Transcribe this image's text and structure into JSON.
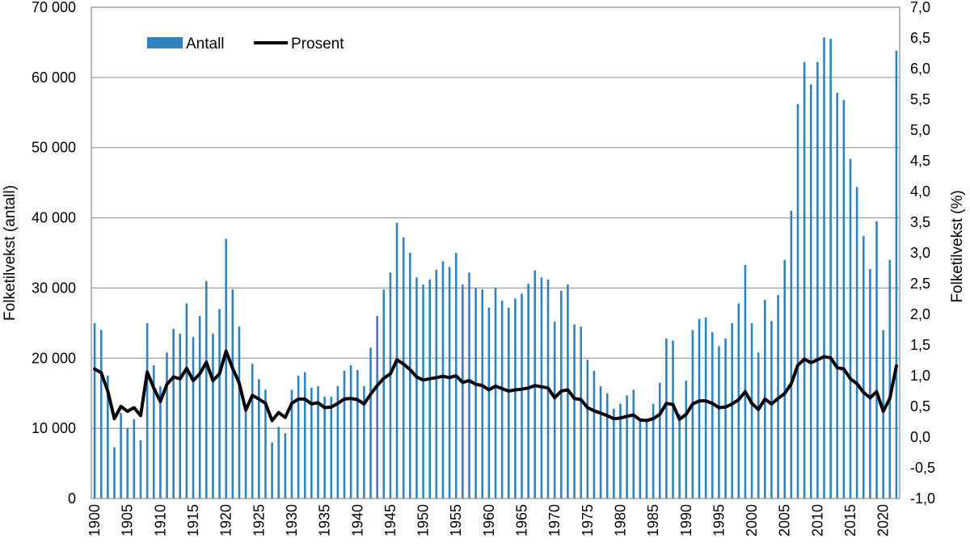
{
  "chart_data": {
    "type": "bar+line",
    "title": "",
    "x": [
      1900,
      1901,
      1902,
      1903,
      1904,
      1905,
      1906,
      1907,
      1908,
      1909,
      1910,
      1911,
      1912,
      1913,
      1914,
      1915,
      1916,
      1917,
      1918,
      1919,
      1920,
      1921,
      1922,
      1923,
      1924,
      1925,
      1926,
      1927,
      1928,
      1929,
      1930,
      1931,
      1932,
      1933,
      1934,
      1935,
      1936,
      1937,
      1938,
      1939,
      1940,
      1941,
      1942,
      1943,
      1944,
      1945,
      1946,
      1947,
      1948,
      1949,
      1950,
      1951,
      1952,
      1953,
      1954,
      1955,
      1956,
      1957,
      1958,
      1959,
      1960,
      1961,
      1962,
      1963,
      1964,
      1965,
      1966,
      1967,
      1968,
      1969,
      1970,
      1971,
      1972,
      1973,
      1974,
      1975,
      1976,
      1977,
      1978,
      1979,
      1980,
      1981,
      1982,
      1983,
      1984,
      1985,
      1986,
      1987,
      1988,
      1989,
      1990,
      1991,
      1992,
      1993,
      1994,
      1995,
      1996,
      1997,
      1998,
      1999,
      2000,
      2001,
      2002,
      2003,
      2004,
      2005,
      2006,
      2007,
      2008,
      2009,
      2010,
      2011,
      2012,
      2013,
      2014,
      2015,
      2016,
      2017,
      2018,
      2019,
      2020,
      2021,
      2022
    ],
    "x_ticks": [
      "1900",
      "1905",
      "1910",
      "1915",
      "1920",
      "1925",
      "1930",
      "1935",
      "1940",
      "1945",
      "1950",
      "1955",
      "1960",
      "1965",
      "1970",
      "1975",
      "1980",
      "1985",
      "1990",
      "1995",
      "2000",
      "2005",
      "2010",
      "2015",
      "2020"
    ],
    "series": [
      {
        "name": "Antall",
        "kind": "bar",
        "axis": "left",
        "color": "#2e83c0",
        "values": [
          25000,
          24000,
          17500,
          7300,
          12200,
          10000,
          11300,
          8300,
          25000,
          19000,
          16000,
          20800,
          24200,
          23500,
          27800,
          23000,
          26000,
          31000,
          23500,
          27000,
          37000,
          29800,
          24500,
          13000,
          19200,
          17000,
          15500,
          8000,
          10200,
          9300,
          15500,
          17500,
          18000,
          15800,
          16000,
          14500,
          14500,
          16000,
          18200,
          19000,
          18300,
          16000,
          21500,
          26000,
          29800,
          32200,
          39300,
          37200,
          35000,
          31500,
          30500,
          31200,
          32600,
          33800,
          33000,
          35000,
          30500,
          32200,
          30000,
          29800,
          27200,
          30000,
          28200,
          27200,
          28500,
          29200,
          30600,
          32500,
          31500,
          31200,
          25200,
          29600,
          30500,
          24800,
          24500,
          19800,
          18200,
          16000,
          15000,
          12800,
          13500,
          14700,
          15500,
          11400,
          11000,
          13500,
          16500,
          22800,
          22500,
          12000,
          16800,
          24000,
          25600,
          25800,
          23700,
          21700,
          22800,
          25000,
          27800,
          33300,
          25000,
          20800,
          28300,
          25300,
          29000,
          34000,
          41000,
          56200,
          62200,
          59000,
          62200,
          65700,
          65500,
          57800,
          56800,
          48400,
          44400,
          37400,
          32700,
          39500,
          24000,
          34000,
          63800
        ]
      },
      {
        "name": "Prosent",
        "kind": "line",
        "axis": "right",
        "color": "#000000",
        "values": [
          1.11,
          1.05,
          0.75,
          0.3,
          0.5,
          0.42,
          0.48,
          0.35,
          1.06,
          0.8,
          0.58,
          0.86,
          0.98,
          0.95,
          1.12,
          0.92,
          1.03,
          1.22,
          0.92,
          1.03,
          1.4,
          1.12,
          0.88,
          0.44,
          0.68,
          0.62,
          0.55,
          0.27,
          0.4,
          0.32,
          0.55,
          0.62,
          0.62,
          0.54,
          0.56,
          0.48,
          0.49,
          0.55,
          0.62,
          0.63,
          0.61,
          0.54,
          0.7,
          0.84,
          0.96,
          1.03,
          1.26,
          1.19,
          1.1,
          0.98,
          0.93,
          0.95,
          0.97,
          0.99,
          0.97,
          1.0,
          0.89,
          0.92,
          0.86,
          0.84,
          0.77,
          0.83,
          0.79,
          0.75,
          0.77,
          0.78,
          0.8,
          0.84,
          0.82,
          0.8,
          0.64,
          0.75,
          0.77,
          0.63,
          0.61,
          0.48,
          0.43,
          0.39,
          0.35,
          0.3,
          0.31,
          0.34,
          0.36,
          0.28,
          0.27,
          0.3,
          0.37,
          0.55,
          0.53,
          0.29,
          0.37,
          0.54,
          0.59,
          0.59,
          0.55,
          0.48,
          0.49,
          0.54,
          0.61,
          0.74,
          0.55,
          0.45,
          0.62,
          0.54,
          0.63,
          0.71,
          0.87,
          1.17,
          1.27,
          1.21,
          1.26,
          1.31,
          1.29,
          1.13,
          1.11,
          0.95,
          0.87,
          0.73,
          0.64,
          0.74,
          0.42,
          0.63,
          1.16
        ]
      }
    ],
    "left_axis": {
      "label": "Folketilvekst (antall)",
      "range": [
        0,
        70000
      ],
      "step": 10000,
      "tick_labels": [
        "0",
        "10 000",
        "20 000",
        "30 000",
        "40 000",
        "50 000",
        "60 000",
        "70 000"
      ]
    },
    "right_axis": {
      "label": "Folketilvekst (%)",
      "range": [
        -1.0,
        7.0
      ],
      "step": 0.5,
      "tick_labels": [
        "-1,0",
        "-0,5",
        "0,0",
        "0,5",
        "1,0",
        "1,5",
        "2,0",
        "2,5",
        "3,0",
        "3,5",
        "4,0",
        "4,5",
        "5,0",
        "5,5",
        "6,0",
        "6,5",
        "7,0"
      ]
    },
    "grid": true,
    "legend": {
      "placement": "top-left",
      "items": [
        {
          "label": "Antall",
          "color": "#2e83c0",
          "kind": "bar"
        },
        {
          "label": "Prosent",
          "color": "#000000",
          "kind": "line"
        }
      ]
    }
  }
}
